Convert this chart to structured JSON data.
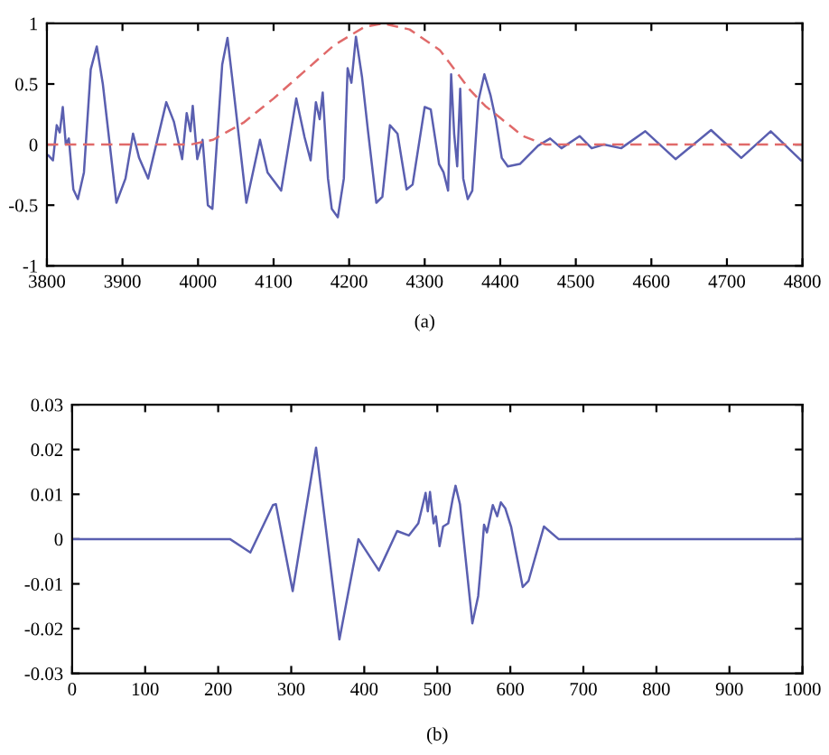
{
  "chart_data": [
    {
      "type": "line",
      "xlim": [
        3800,
        4800
      ],
      "ylim": [
        -1,
        1
      ],
      "xticks": [
        3800,
        3900,
        4000,
        4100,
        4200,
        4300,
        4400,
        4500,
        4600,
        4700,
        4800
      ],
      "yticks": [
        -1,
        -0.5,
        0,
        0.5,
        1
      ],
      "grid": false,
      "annotations": [
        "(a)"
      ],
      "series": [
        {
          "color": "#5a5fb0",
          "line_style": "solid",
          "x": [
            3802,
            3808,
            3813,
            3817,
            3821,
            3825,
            3829,
            3835,
            3841,
            3849,
            3858,
            3866,
            3874,
            3892,
            3904,
            3914,
            3922,
            3934,
            3958,
            3968,
            3979,
            3985,
            3990,
            3993,
            3999,
            4006,
            4013,
            4019,
            4032,
            4039,
            4045,
            4064,
            4082,
            4092,
            4110,
            4130,
            4141,
            4149,
            4156,
            4161,
            4165,
            4172,
            4177,
            4185,
            4193,
            4198,
            4203,
            4209,
            4217,
            4225,
            4236,
            4244,
            4254,
            4264,
            4276,
            4284,
            4300,
            4308,
            4319,
            4325,
            4331,
            4335,
            4339,
            4343,
            4347,
            4351,
            4357,
            4363,
            4371,
            4379,
            4387,
            4394,
            4402,
            4410,
            4426,
            4450,
            4466,
            4481,
            4505,
            4521,
            4537,
            4560,
            4592,
            4632,
            4679,
            4719,
            4758,
            4798
          ],
          "values": [
            -0.09,
            -0.13,
            0.16,
            0.1,
            0.31,
            0.0,
            0.05,
            -0.37,
            -0.45,
            -0.23,
            0.62,
            0.81,
            0.5,
            -0.48,
            -0.28,
            0.09,
            -0.11,
            -0.28,
            0.35,
            0.19,
            -0.12,
            0.26,
            0.11,
            0.32,
            -0.12,
            0.04,
            -0.5,
            -0.53,
            0.66,
            0.88,
            0.56,
            -0.48,
            0.04,
            -0.23,
            -0.38,
            0.38,
            0.06,
            -0.13,
            0.35,
            0.21,
            0.43,
            -0.28,
            -0.53,
            -0.6,
            -0.28,
            0.63,
            0.51,
            0.89,
            0.56,
            0.11,
            -0.48,
            -0.43,
            0.16,
            0.09,
            -0.37,
            -0.33,
            0.31,
            0.29,
            -0.16,
            -0.23,
            -0.38,
            0.58,
            0.09,
            -0.18,
            0.46,
            -0.28,
            -0.45,
            -0.38,
            0.36,
            0.58,
            0.41,
            0.21,
            -0.11,
            -0.18,
            -0.16,
            -0.01,
            0.05,
            -0.03,
            0.07,
            -0.03,
            0.0,
            -0.03,
            0.11,
            -0.12,
            0.12,
            -0.11,
            0.11,
            -0.13
          ]
        },
        {
          "color": "#e06a6a",
          "line_style": "dashed",
          "x": [
            3800,
            3990,
            4020,
            4060,
            4100,
            4140,
            4180,
            4220,
            4245,
            4280,
            4320,
            4360,
            4380,
            4400,
            4430,
            4460,
            4800
          ],
          "values": [
            0,
            0,
            0.04,
            0.18,
            0.38,
            0.6,
            0.82,
            0.97,
            1.0,
            0.95,
            0.78,
            0.45,
            0.32,
            0.22,
            0.07,
            0,
            0
          ]
        }
      ]
    },
    {
      "type": "line",
      "xlim": [
        0,
        1000
      ],
      "ylim": [
        -0.03,
        0.03
      ],
      "xticks": [
        0,
        100,
        200,
        300,
        400,
        500,
        600,
        700,
        800,
        900,
        1000
      ],
      "yticks": [
        -0.03,
        -0.02,
        -0.01,
        0,
        0.01,
        0.02,
        0.03
      ],
      "grid": false,
      "annotations": [
        "(b)"
      ],
      "series": [
        {
          "color": "#5a5fb0",
          "line_style": "solid",
          "x": [
            0,
            216,
            244,
            275,
            279,
            302,
            334,
            366,
            392,
            420,
            445,
            461,
            474,
            484,
            487,
            490,
            495,
            498,
            503,
            508,
            515,
            521,
            525,
            531,
            548,
            556,
            560,
            564,
            568,
            576,
            582,
            587,
            593,
            601,
            617,
            625,
            646,
            666,
            1000
          ],
          "values": [
            0,
            0,
            -0.003,
            0.0076,
            0.0078,
            -0.0116,
            0.0204,
            -0.0224,
            0,
            -0.007,
            0.0018,
            0.0008,
            0.0035,
            0.0103,
            0.0062,
            0.0105,
            0.0035,
            0.0051,
            -0.0016,
            0.0028,
            0.0035,
            0.0089,
            0.0119,
            0.0078,
            -0.0188,
            -0.0127,
            -0.0053,
            0.0032,
            0.0015,
            0.0076,
            0.0051,
            0.0082,
            0.0069,
            0.0028,
            -0.0107,
            -0.0093,
            0.0028,
            0,
            0
          ]
        }
      ]
    }
  ]
}
